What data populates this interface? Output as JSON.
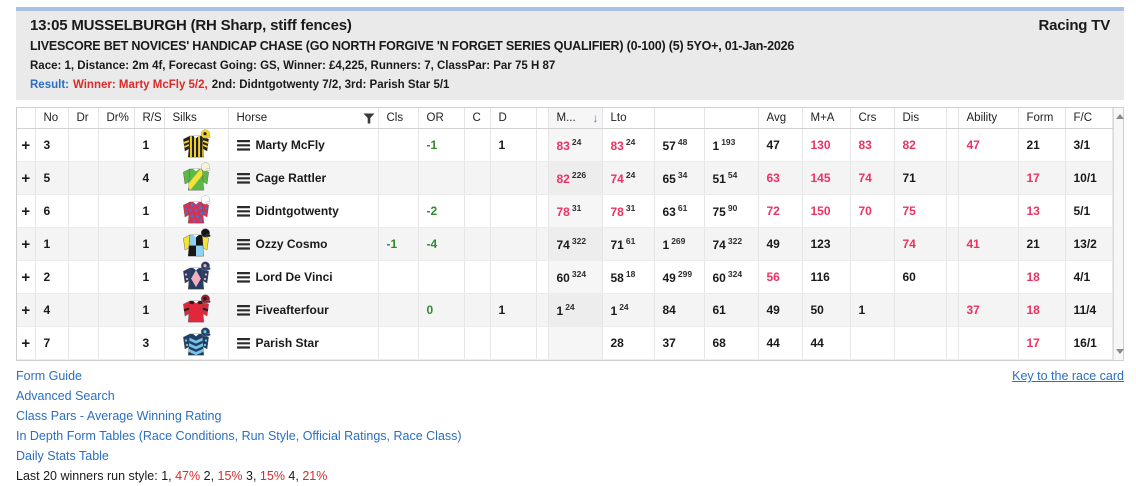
{
  "colors": {
    "red": "#ed3162",
    "green": "#2e8b2e",
    "black": "#1a1a1a",
    "result_red": "#d92b2b",
    "link_blue": "#2a6fc0",
    "top_strip_blue": "#a9bfe3",
    "header_bg": "#eaeaea"
  },
  "header": {
    "title": "13:05 MUSSELBURGH (RH Sharp, stiff fences)",
    "channel": "Racing TV",
    "race_name": "LIVESCORE BET NOVICES' HANDICAP CHASE (GO NORTH FORGIVE 'N FORGET SERIES QUALIFIER) (0-100) (5) 5YO+, 01-Jan-2026",
    "race_info": "Race: 1, Distance: 2m 4f, Forecast Going: GS, Winner: £4,225, Runners: 7, ClassPar: Par 75 H 87",
    "result_label": "Result:",
    "result_winner": "Winner: Marty McFly 5/2,",
    "result_rest": "2nd: Didntgotwenty 7/2, 3rd: Parish Star 5/1"
  },
  "table": {
    "expander_symbol": "+",
    "column_labels": {
      "exp": "",
      "no": "No",
      "dr": "Dr",
      "drp": "Dr%",
      "rs": "R/S",
      "silks": "Silks",
      "horse": "Horse",
      "cls": "Cls",
      "or": "OR",
      "c": "C",
      "d": "D",
      "g1": "",
      "m": "M...",
      "lto": "Lto",
      "x1": "",
      "x2": "",
      "avg": "Avg",
      "ma": "M+A",
      "crs": "Crs",
      "dis": "Dis",
      "g2": "",
      "ability": "Ability",
      "form": "Form",
      "fc": "F/C"
    },
    "sorted_column": "m",
    "rows": [
      {
        "no": "3",
        "rs": "1",
        "horse": "Marty McFly",
        "silk": {
          "pattern": "stripes",
          "body": "#f5d327",
          "alt": "#1f1f1f",
          "sleeve": "#1f1f1f",
          "sleeveAlt": "#f5d327",
          "cap": "#f5d327",
          "capMark": "#1f1f1f"
        },
        "vals": {
          "or": {
            "v": "-1",
            "c": "g"
          },
          "d": {
            "v": "1",
            "c": "k"
          },
          "m": {
            "v": "83",
            "sup": "24",
            "c": "r"
          },
          "lto": {
            "v": "83",
            "sup": "24",
            "c": "r"
          },
          "x1": {
            "v": "57",
            "sup": "48",
            "c": "k"
          },
          "x2": {
            "v": "1",
            "sup": "193",
            "c": "k"
          },
          "avg": {
            "v": "47",
            "c": "k"
          },
          "ma": {
            "v": "130",
            "c": "r"
          },
          "crs": {
            "v": "83",
            "c": "r"
          },
          "dis": {
            "v": "82",
            "c": "r"
          },
          "ability": {
            "v": "47",
            "c": "r"
          },
          "form": {
            "v": "21",
            "c": "k"
          },
          "fc": {
            "v": "3/1",
            "c": "k"
          }
        }
      },
      {
        "no": "5",
        "rs": "4",
        "horse": "Cage Rattler",
        "silk": {
          "pattern": "sash",
          "body": "#5cb947",
          "alt": "#f2e23a",
          "sleeve": "#5cb947",
          "cap": "#f7f3d9"
        },
        "vals": {
          "m": {
            "v": "82",
            "sup": "226",
            "c": "r"
          },
          "lto": {
            "v": "74",
            "sup": "24",
            "c": "r"
          },
          "x1": {
            "v": "65",
            "sup": "34",
            "c": "k"
          },
          "x2": {
            "v": "51",
            "sup": "54",
            "c": "k"
          },
          "avg": {
            "v": "63",
            "c": "r"
          },
          "ma": {
            "v": "145",
            "c": "r"
          },
          "crs": {
            "v": "74",
            "c": "r"
          },
          "dis": {
            "v": "71",
            "c": "k"
          },
          "form": {
            "v": "17",
            "c": "r"
          },
          "fc": {
            "v": "10/1",
            "c": "k"
          }
        }
      },
      {
        "no": "6",
        "rs": "1",
        "horse": "Didntgotwenty",
        "silk": {
          "pattern": "spots",
          "body": "#d8304e",
          "alt": "#4e6fcc",
          "sleeve": "#d8304e",
          "cap": "#ffffff"
        },
        "vals": {
          "or": {
            "v": "-2",
            "c": "g"
          },
          "m": {
            "v": "78",
            "sup": "31",
            "c": "r"
          },
          "lto": {
            "v": "78",
            "sup": "31",
            "c": "r"
          },
          "x1": {
            "v": "63",
            "sup": "61",
            "c": "k"
          },
          "x2": {
            "v": "75",
            "sup": "90",
            "c": "k"
          },
          "avg": {
            "v": "72",
            "c": "r"
          },
          "ma": {
            "v": "150",
            "c": "r"
          },
          "crs": {
            "v": "70",
            "c": "r"
          },
          "dis": {
            "v": "75",
            "c": "r"
          },
          "form": {
            "v": "13",
            "c": "r"
          },
          "fc": {
            "v": "5/1",
            "c": "k"
          }
        }
      },
      {
        "no": "1",
        "rs": "1",
        "horse": "Ozzy Cosmo",
        "silk": {
          "pattern": "quarters",
          "body": "#8ed1f2",
          "alt": "#161616",
          "sleeve": "#f2e23a",
          "cap": "#161616"
        },
        "vals": {
          "cls": {
            "v": "-1",
            "c": "g"
          },
          "or": {
            "v": "-4",
            "c": "g"
          },
          "m": {
            "v": "74",
            "sup": "322",
            "c": "k"
          },
          "lto": {
            "v": "71",
            "sup": "61",
            "c": "k"
          },
          "x1": {
            "v": "1",
            "sup": "269",
            "c": "k"
          },
          "x2": {
            "v": "74",
            "sup": "322",
            "c": "k"
          },
          "avg": {
            "v": "49",
            "c": "k"
          },
          "ma": {
            "v": "123",
            "c": "k"
          },
          "dis": {
            "v": "74",
            "c": "r"
          },
          "ability": {
            "v": "41",
            "c": "r"
          },
          "form": {
            "v": "21",
            "c": "k"
          },
          "fc": {
            "v": "13/2",
            "c": "k"
          }
        }
      },
      {
        "no": "2",
        "rs": "1",
        "horse": "Lord De Vinci",
        "silk": {
          "pattern": "diamond",
          "body": "#253c63",
          "alt": "#f3aec2",
          "sleeve": "#253c63",
          "cap": "#253c63",
          "capMark": "#f3aec2"
        },
        "vals": {
          "m": {
            "v": "60",
            "sup": "324",
            "c": "k"
          },
          "lto": {
            "v": "58",
            "sup": "18",
            "c": "k"
          },
          "x1": {
            "v": "49",
            "sup": "299",
            "c": "k"
          },
          "x2": {
            "v": "60",
            "sup": "324",
            "c": "k"
          },
          "avg": {
            "v": "56",
            "c": "r"
          },
          "ma": {
            "v": "116",
            "c": "k"
          },
          "dis": {
            "v": "60",
            "c": "k"
          },
          "form": {
            "v": "18",
            "c": "r"
          },
          "fc": {
            "v": "4/1",
            "c": "k"
          }
        }
      },
      {
        "no": "4",
        "rs": "1",
        "horse": "Fiveafterfour",
        "silk": {
          "pattern": "epaulets",
          "body": "#e2273c",
          "alt": "#1f1f1f",
          "sleeve": "#e2273c",
          "cap": "#8f1f30",
          "capMark": "#1f1f1f"
        },
        "vals": {
          "or": {
            "v": "0",
            "c": "g"
          },
          "d": {
            "v": "1",
            "c": "k"
          },
          "m": {
            "v": "1",
            "sup": "24",
            "c": "k"
          },
          "lto": {
            "v": "1",
            "sup": "24",
            "c": "k"
          },
          "x1": {
            "v": "84",
            "c": "k"
          },
          "x2": {
            "v": "61",
            "c": "k"
          },
          "avg": {
            "v": "49",
            "c": "k"
          },
          "ma": {
            "v": "50",
            "c": "k"
          },
          "crs": {
            "v": "1",
            "c": "k"
          },
          "ability": {
            "v": "37",
            "c": "r"
          },
          "form": {
            "v": "18",
            "c": "r"
          },
          "fc": {
            "v": "11/4",
            "c": "k"
          }
        }
      },
      {
        "no": "7",
        "rs": "3",
        "horse": "Parish Star",
        "silk": {
          "pattern": "chevrons",
          "body": "#1f3f63",
          "alt": "#79c3e8",
          "sleeve": "#1f3f63",
          "cap": "#1f3f63",
          "capMark": "#79c3e8"
        },
        "vals": {
          "lto": {
            "v": "28",
            "c": "k"
          },
          "x1": {
            "v": "37",
            "c": "k"
          },
          "x2": {
            "v": "68",
            "c": "k"
          },
          "avg": {
            "v": "44",
            "c": "k"
          },
          "ma": {
            "v": "44",
            "c": "k"
          },
          "form": {
            "v": "17",
            "c": "r"
          },
          "fc": {
            "v": "16/1",
            "c": "k"
          }
        }
      }
    ]
  },
  "footer": {
    "links": [
      "Form Guide",
      "Advanced Search",
      "Class Pars - Average Winning Rating",
      "In Depth Form Tables (Race Conditions, Run Style, Official Ratings, Race Class)",
      "Daily Stats Table"
    ],
    "key_link": "Key to the race card",
    "runstyle_segments": [
      {
        "t": "Last 20 winners run style: 1, ",
        "c": "k"
      },
      {
        "t": "47%",
        "c": "rr"
      },
      {
        "t": " 2, ",
        "c": "k"
      },
      {
        "t": "15%",
        "c": "rr"
      },
      {
        "t": " 3, ",
        "c": "k"
      },
      {
        "t": "15%",
        "c": "rr"
      },
      {
        "t": " 4, ",
        "c": "k"
      },
      {
        "t": "21%",
        "c": "rr"
      }
    ]
  }
}
